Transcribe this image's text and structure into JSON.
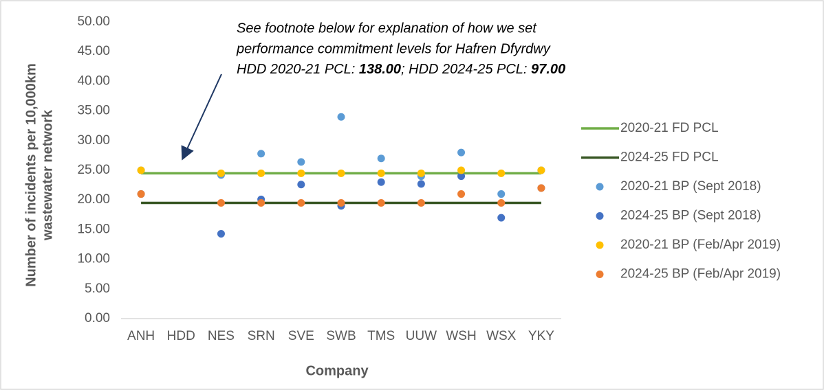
{
  "chart_data": {
    "type": "line",
    "x_label": "Company",
    "y_label": [
      "Number of incidents per 10,000km",
      "wastewater network"
    ],
    "annotation": {
      "lines": [
        "See footnote below for explanation of how we set",
        "performance commitment levels for Hafren Dfyrdwy"
      ],
      "last_line": [
        "HDD 2020-21 PCL: ",
        "138.00",
        "; HDD 2024-25 PCL: ",
        "97.00"
      ]
    },
    "categories": [
      "ANH",
      "HDD",
      "NES",
      "SRN",
      "SVE",
      "SWB",
      "TMS",
      "UUW",
      "WSH",
      "WSX",
      "YKY"
    ],
    "ylim": [
      0,
      50
    ],
    "yticks": [
      {
        "value": 0,
        "label": "0.00"
      },
      {
        "value": 5,
        "label": "5.00"
      },
      {
        "value": 10,
        "label": "10.00"
      },
      {
        "value": 15,
        "label": "15.00"
      },
      {
        "value": 20,
        "label": "20.00"
      },
      {
        "value": 25,
        "label": "25.00"
      },
      {
        "value": 30,
        "label": "30.00"
      },
      {
        "value": 35,
        "label": "35.00"
      },
      {
        "value": 40,
        "label": "40.00"
      },
      {
        "value": 45,
        "label": "45.00"
      },
      {
        "value": 50,
        "label": "50.00"
      }
    ],
    "grid": false,
    "legend": "right",
    "series": [
      {
        "name": "2020-21 FD PCL",
        "color": "#70ad47",
        "kind": "line",
        "values": [
          24.5,
          24.5,
          24.5,
          24.5,
          24.5,
          24.5,
          24.5,
          24.5,
          24.5,
          24.5,
          24.5
        ]
      },
      {
        "name": "2024-25 FD PCL",
        "color": "#375623",
        "kind": "line",
        "values": [
          19.5,
          19.5,
          19.5,
          19.5,
          19.5,
          19.5,
          19.5,
          19.5,
          19.5,
          19.5,
          19.5
        ]
      },
      {
        "name": "2020-21 BP (Sept 2018)",
        "color": "#5b9bd5",
        "kind": "points",
        "values": [
          25,
          null,
          24.2,
          27.8,
          26.4,
          34,
          27,
          24,
          28,
          21,
          25
        ]
      },
      {
        "name": "2024-25 BP (Sept 2018)",
        "color": "#4472c4",
        "kind": "points",
        "values": [
          21,
          null,
          14.3,
          20.1,
          22.6,
          19,
          23,
          22.7,
          24,
          17,
          22
        ]
      },
      {
        "name": "2020-21 BP (Feb/Apr 2019)",
        "color": "#ffc000",
        "kind": "points",
        "values": [
          25,
          null,
          24.5,
          24.5,
          24.5,
          24.5,
          24.5,
          24.5,
          25,
          24.5,
          25
        ]
      },
      {
        "name": "2024-25 BP (Feb/Apr 2019)",
        "color": "#ed7d31",
        "kind": "points",
        "values": [
          21,
          null,
          19.5,
          19.5,
          19.5,
          19.5,
          19.5,
          19.5,
          21,
          19.5,
          22
        ]
      }
    ]
  }
}
